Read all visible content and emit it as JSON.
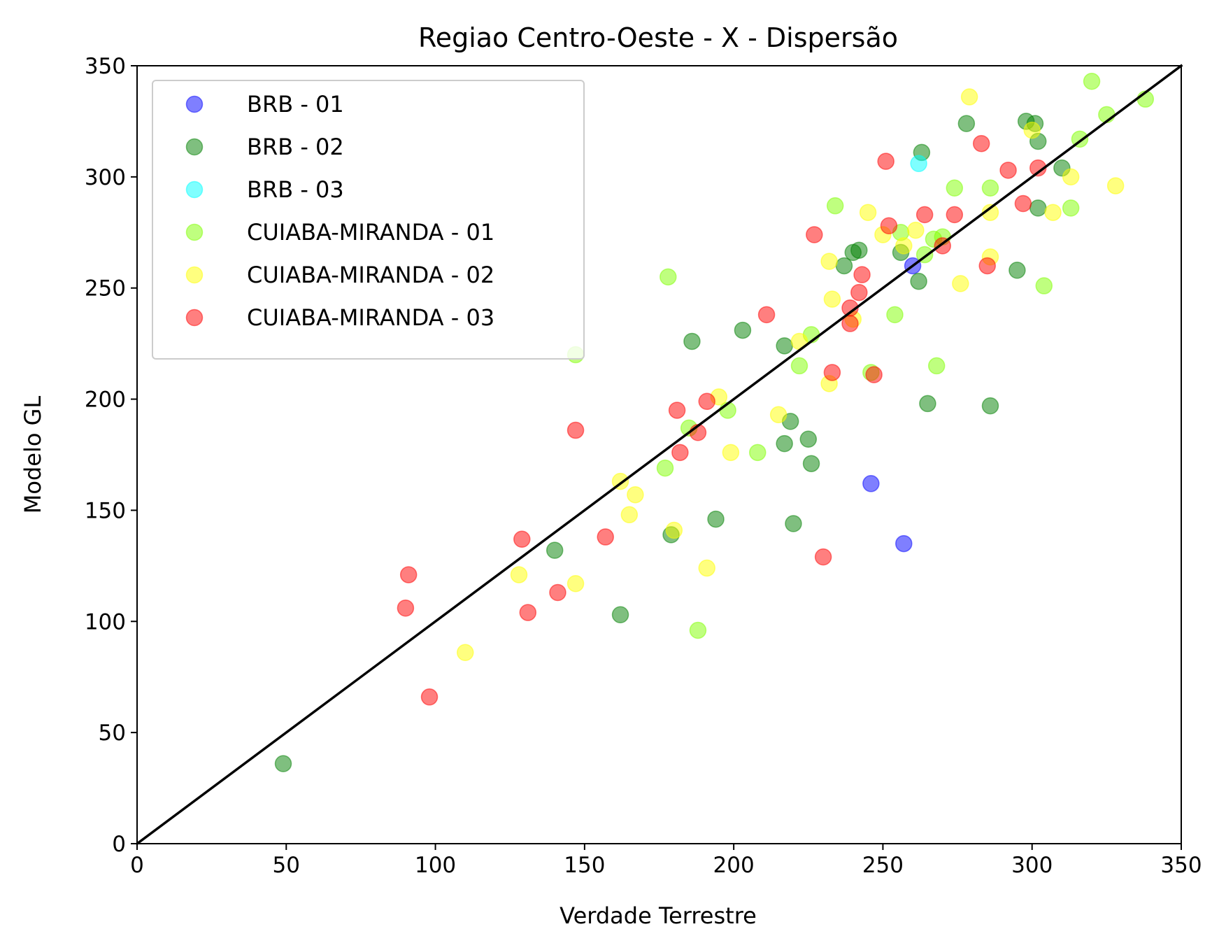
{
  "chart_data": {
    "type": "scatter",
    "title": "Regiao Centro-Oeste - X - Dispersão",
    "xlabel": "Verdade Terrestre",
    "ylabel": "Modelo GL",
    "xlim": [
      0,
      350
    ],
    "ylim": [
      0,
      350
    ],
    "xticks": [
      "0",
      "50",
      "100",
      "150",
      "200",
      "250",
      "300",
      "350"
    ],
    "yticks": [
      "0",
      "50",
      "100",
      "150",
      "200",
      "250",
      "300",
      "350"
    ],
    "grid": false,
    "legend_position": "upper-left",
    "reference_line": {
      "x": [
        0,
        350
      ],
      "y": [
        0,
        350
      ],
      "color": "#000000"
    },
    "series": [
      {
        "name": "BRB - 01",
        "color": "#0000ff",
        "points": [
          [
            246,
            162
          ],
          [
            257,
            135
          ],
          [
            260,
            260
          ]
        ]
      },
      {
        "name": "BRB - 02",
        "color": "#008000",
        "points": [
          [
            49,
            36
          ],
          [
            140,
            132
          ],
          [
            162,
            103
          ],
          [
            179,
            139
          ],
          [
            186,
            226
          ],
          [
            194,
            146
          ],
          [
            203,
            231
          ],
          [
            217,
            224
          ],
          [
            217,
            180
          ],
          [
            219,
            190
          ],
          [
            220,
            144
          ],
          [
            225,
            182
          ],
          [
            226,
            171
          ],
          [
            237,
            260
          ],
          [
            240,
            266
          ],
          [
            242,
            267
          ],
          [
            256,
            266
          ],
          [
            262,
            253
          ],
          [
            263,
            311
          ],
          [
            265,
            198
          ],
          [
            278,
            324
          ],
          [
            286,
            197
          ],
          [
            295,
            258
          ],
          [
            298,
            325
          ],
          [
            301,
            324
          ],
          [
            302,
            316
          ],
          [
            302,
            286
          ],
          [
            310,
            304
          ]
        ]
      },
      {
        "name": "BRB - 03",
        "color": "#00ffff",
        "points": [
          [
            262,
            306
          ]
        ]
      },
      {
        "name": "CUIABA-MIRANDA - 01",
        "color": "#7fff00",
        "points": [
          [
            147,
            220
          ],
          [
            177,
            169
          ],
          [
            178,
            255
          ],
          [
            185,
            187
          ],
          [
            188,
            96
          ],
          [
            198,
            195
          ],
          [
            208,
            176
          ],
          [
            222,
            215
          ],
          [
            226,
            229
          ],
          [
            234,
            287
          ],
          [
            246,
            212
          ],
          [
            254,
            238
          ],
          [
            256,
            275
          ],
          [
            264,
            265
          ],
          [
            267,
            272
          ],
          [
            268,
            215
          ],
          [
            270,
            273
          ],
          [
            274,
            295
          ],
          [
            286,
            295
          ],
          [
            304,
            251
          ],
          [
            313,
            286
          ],
          [
            316,
            317
          ],
          [
            320,
            343
          ],
          [
            325,
            328
          ],
          [
            338,
            335
          ]
        ]
      },
      {
        "name": "CUIABA-MIRANDA - 02",
        "color": "#ffff00",
        "points": [
          [
            110,
            86
          ],
          [
            128,
            121
          ],
          [
            147,
            117
          ],
          [
            162,
            163
          ],
          [
            165,
            148
          ],
          [
            167,
            157
          ],
          [
            180,
            141
          ],
          [
            191,
            124
          ],
          [
            195,
            201
          ],
          [
            199,
            176
          ],
          [
            215,
            193
          ],
          [
            222,
            226
          ],
          [
            232,
            207
          ],
          [
            232,
            262
          ],
          [
            233,
            245
          ],
          [
            240,
            236
          ],
          [
            245,
            284
          ],
          [
            250,
            274
          ],
          [
            257,
            269
          ],
          [
            261,
            276
          ],
          [
            276,
            252
          ],
          [
            279,
            336
          ],
          [
            286,
            284
          ],
          [
            286,
            264
          ],
          [
            300,
            321
          ],
          [
            307,
            284
          ],
          [
            313,
            300
          ],
          [
            328,
            296
          ]
        ]
      },
      {
        "name": "CUIABA-MIRANDA - 03",
        "color": "#ff0000",
        "points": [
          [
            90,
            106
          ],
          [
            91,
            121
          ],
          [
            98,
            66
          ],
          [
            129,
            137
          ],
          [
            131,
            104
          ],
          [
            141,
            113
          ],
          [
            147,
            186
          ],
          [
            157,
            138
          ],
          [
            181,
            195
          ],
          [
            182,
            176
          ],
          [
            188,
            185
          ],
          [
            191,
            199
          ],
          [
            211,
            238
          ],
          [
            227,
            274
          ],
          [
            230,
            129
          ],
          [
            233,
            212
          ],
          [
            239,
            234
          ],
          [
            239,
            241
          ],
          [
            242,
            248
          ],
          [
            243,
            256
          ],
          [
            247,
            211
          ],
          [
            251,
            307
          ],
          [
            252,
            278
          ],
          [
            264,
            283
          ],
          [
            270,
            269
          ],
          [
            274,
            283
          ],
          [
            283,
            315
          ],
          [
            285,
            260
          ],
          [
            292,
            303
          ],
          [
            297,
            288
          ],
          [
            302,
            304
          ]
        ]
      }
    ]
  }
}
